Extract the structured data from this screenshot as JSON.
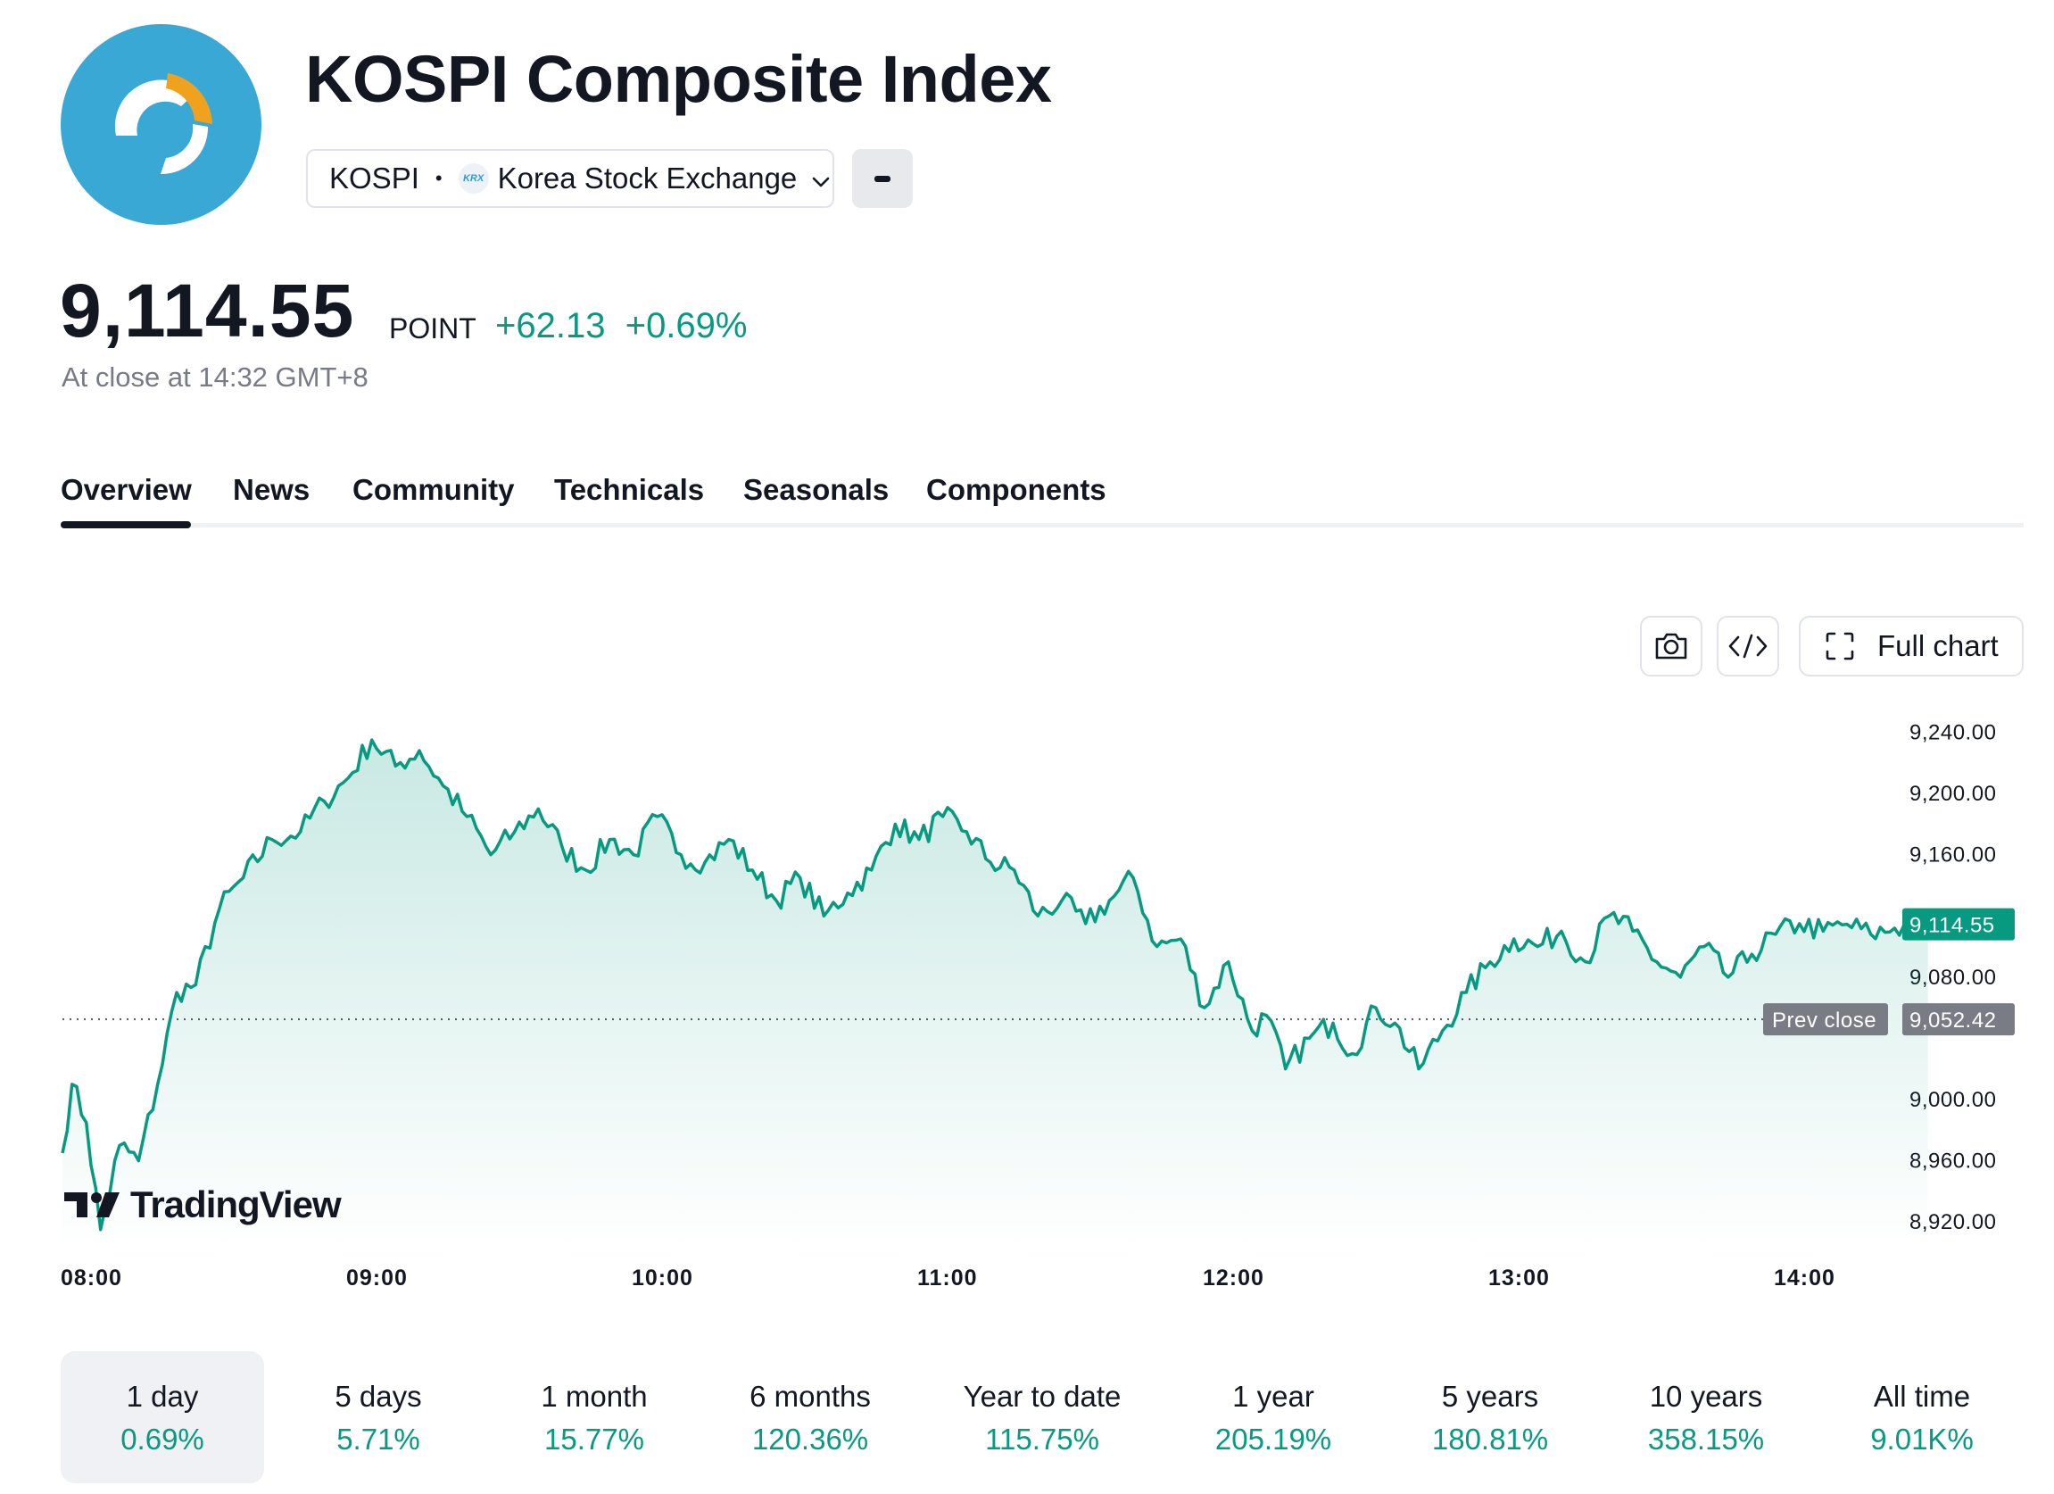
{
  "header": {
    "title": "KOSPI Composite Index",
    "symbol": "KOSPI",
    "exchange_badge": "KRX",
    "exchange": "Korea Stock Exchange"
  },
  "quote": {
    "price": "9,114.55",
    "unit": "POINT",
    "change": "+62.13",
    "change_percent": "+0.69%",
    "status": "At close at 14:32 GMT+8",
    "positive_color": "#089981"
  },
  "tabs": [
    {
      "label": "Overview",
      "active": true
    },
    {
      "label": "News"
    },
    {
      "label": "Community"
    },
    {
      "label": "Technicals"
    },
    {
      "label": "Seasonals"
    },
    {
      "label": "Components"
    }
  ],
  "toolbar": {
    "snapshot_icon": "camera-icon",
    "embed_icon": "code-icon",
    "fullchart_icon": "expand-icon",
    "full_chart_label": "Full chart"
  },
  "chart_data": {
    "type": "area",
    "series_color": "#089981",
    "x_ticks": [
      "08:00",
      "09:00",
      "10:00",
      "11:00",
      "12:00",
      "13:00",
      "14:00"
    ],
    "y_ticks": [
      "9,240.00",
      "9,200.00",
      "9,160.00",
      "9,080.00",
      "9,000.00",
      "8,960.00",
      "8,920.00"
    ],
    "y_tick_values": [
      9240,
      9200,
      9160,
      9080,
      9000,
      8960,
      8920
    ],
    "ylim": [
      8902,
      9252
    ],
    "xlim": [
      "08:00",
      "14:32"
    ],
    "last_value_label": "9,114.55",
    "prev_close_label": "Prev close",
    "prev_close_value_label": "9,052.42",
    "last_value": 9114.55,
    "prev_close": 9052.42,
    "x": [
      "08:00",
      "08:02",
      "08:05",
      "08:08",
      "08:12",
      "08:16",
      "08:20",
      "08:24",
      "08:28",
      "08:33",
      "08:38",
      "08:44",
      "08:50",
      "08:55",
      "09:00",
      "09:05",
      "09:10",
      "09:15",
      "09:20",
      "09:25",
      "09:30",
      "09:35",
      "09:40",
      "09:45",
      "09:50",
      "09:55",
      "10:00",
      "10:05",
      "10:10",
      "10:15",
      "10:20",
      "10:25",
      "10:30",
      "10:35",
      "10:40",
      "10:45",
      "10:50",
      "10:55",
      "11:00",
      "11:05",
      "11:10",
      "11:15",
      "11:20",
      "11:25",
      "11:30",
      "11:35",
      "11:40",
      "11:45",
      "11:50",
      "11:55",
      "12:00",
      "12:05",
      "12:10",
      "12:13",
      "12:17",
      "12:22",
      "12:27",
      "12:31",
      "12:36",
      "12:40",
      "12:45",
      "12:50",
      "12:55",
      "13:00",
      "13:05",
      "13:10",
      "13:15",
      "13:20",
      "13:25",
      "13:30",
      "13:35",
      "13:40",
      "13:45",
      "13:50",
      "13:55",
      "14:00",
      "14:05",
      "14:10",
      "14:15",
      "14:20",
      "14:25",
      "14:32"
    ],
    "y": [
      8965,
      9010,
      8985,
      8915,
      8970,
      8960,
      9010,
      9070,
      9075,
      9125,
      9145,
      9170,
      9175,
      9195,
      9210,
      9235,
      9218,
      9228,
      9205,
      9185,
      9160,
      9175,
      9190,
      9165,
      9150,
      9170,
      9160,
      9185,
      9160,
      9155,
      9170,
      9150,
      9130,
      9145,
      9120,
      9135,
      9150,
      9180,
      9170,
      9185,
      9175,
      9155,
      9150,
      9120,
      9130,
      9115,
      9130,
      9145,
      9100,
      9105,
      9060,
      9090,
      9045,
      9055,
      9020,
      9040,
      9050,
      9030,
      9060,
      9050,
      9020,
      9045,
      9070,
      9090,
      9105,
      9100,
      9110,
      9090,
      9120,
      9110,
      9090,
      9080,
      9100,
      9080,
      9095,
      9108,
      9115,
      9110,
      9114.55,
      9108,
      9112,
      9114.55
    ]
  },
  "brand": "TradingView",
  "periods": [
    {
      "label": "1 day",
      "value": "0.69%",
      "active": true
    },
    {
      "label": "5 days",
      "value": "5.71%"
    },
    {
      "label": "1 month",
      "value": "15.77%"
    },
    {
      "label": "6 months",
      "value": "120.36%"
    },
    {
      "label": "Year to date",
      "value": "115.75%"
    },
    {
      "label": "1 year",
      "value": "205.19%"
    },
    {
      "label": "5 years",
      "value": "180.81%"
    },
    {
      "label": "10 years",
      "value": "358.15%"
    },
    {
      "label": "All time",
      "value": "9.01K%"
    }
  ]
}
